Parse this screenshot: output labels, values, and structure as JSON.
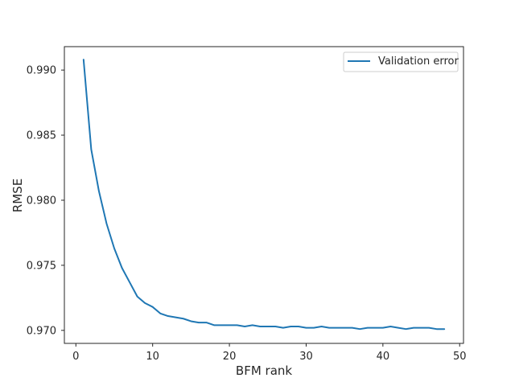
{
  "chart_data": {
    "type": "line",
    "xlabel": "BFM rank",
    "ylabel": "RMSE",
    "xlim": [
      -1.5,
      50.5
    ],
    "ylim": [
      0.969,
      0.9918
    ],
    "xticks": [
      0,
      10,
      20,
      30,
      40,
      50
    ],
    "yticks": [
      0.97,
      0.975,
      0.98,
      0.985,
      0.99
    ],
    "ytick_labels": [
      "0.970",
      "0.975",
      "0.980",
      "0.985",
      "0.990"
    ],
    "grid": false,
    "legend_position": "upper right",
    "series": [
      {
        "name": "Validation error",
        "color": "#1f77b4",
        "x": [
          1,
          2,
          3,
          4,
          5,
          6,
          7,
          8,
          9,
          10,
          11,
          12,
          13,
          14,
          15,
          16,
          17,
          18,
          19,
          20,
          21,
          22,
          23,
          24,
          25,
          26,
          27,
          28,
          29,
          30,
          31,
          32,
          33,
          34,
          35,
          36,
          37,
          38,
          39,
          40,
          41,
          42,
          43,
          44,
          45,
          46,
          47,
          48
        ],
        "y": [
          0.9908,
          0.9839,
          0.9807,
          0.9782,
          0.9763,
          0.9748,
          0.9737,
          0.9726,
          0.9721,
          0.9718,
          0.9713,
          0.9711,
          0.971,
          0.9709,
          0.9707,
          0.9706,
          0.9706,
          0.9704,
          0.9704,
          0.9704,
          0.9704,
          0.9703,
          0.9704,
          0.9703,
          0.9703,
          0.9703,
          0.9702,
          0.9703,
          0.9703,
          0.9702,
          0.9702,
          0.9703,
          0.9702,
          0.9702,
          0.9702,
          0.9702,
          0.9701,
          0.9702,
          0.9702,
          0.9702,
          0.9703,
          0.9702,
          0.9701,
          0.9702,
          0.9702,
          0.9702,
          0.9701,
          0.9701
        ]
      }
    ]
  }
}
